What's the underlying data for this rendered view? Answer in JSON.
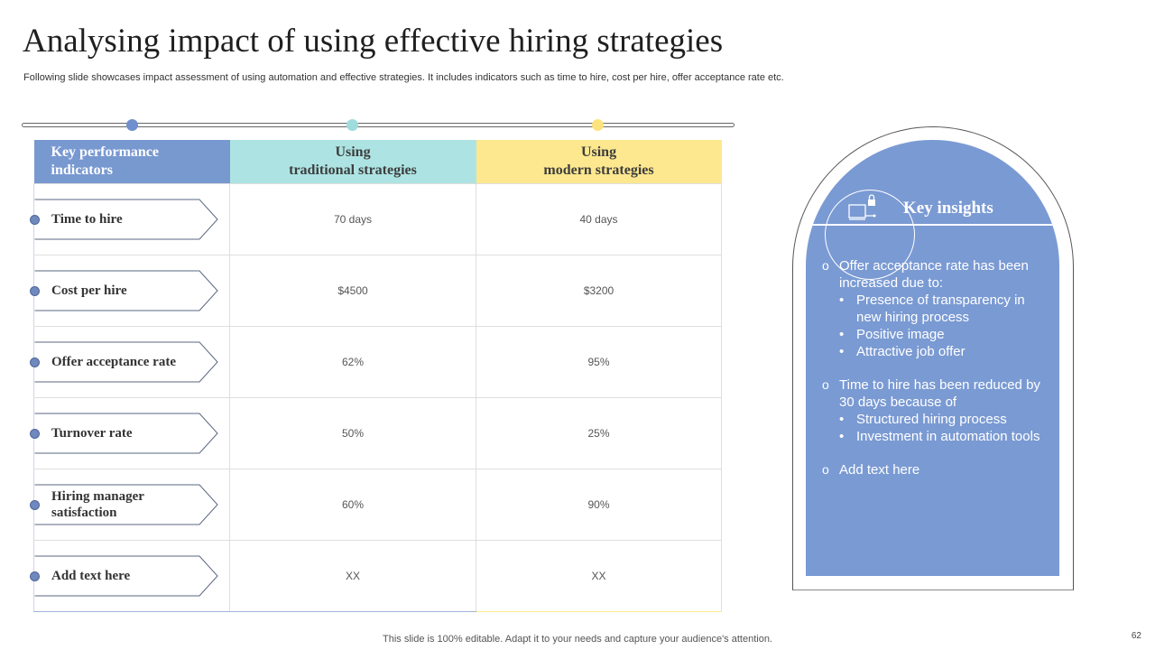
{
  "slide": {
    "title": "Analysing impact of using effective hiring strategies",
    "subtitle": "Following slide showcases impact assessment of using automation and effective strategies. It includes indicators such as time to hire, cost per hire, offer acceptance rate etc.",
    "footer": "This slide is 100% editable. Adapt it to your needs and capture your audience's attention.",
    "page_number": "62"
  },
  "colors": {
    "kpi_header": "#7898d0",
    "traditional_header": "#ade4e3",
    "modern_header": "#fde88f",
    "insights_panel": "#7a9ad3",
    "timeline_dots": [
      "#6f8fcf",
      "#9fdcdc",
      "#fde37e"
    ]
  },
  "table": {
    "headers": {
      "kpi": [
        "Key performance",
        "indicators"
      ],
      "traditional": [
        "Using",
        "traditional strategies"
      ],
      "modern": [
        "Using",
        "modern strategies"
      ]
    },
    "rows": [
      {
        "kpi": "Time to hire",
        "traditional": "70 days",
        "modern": "40 days"
      },
      {
        "kpi": "Cost per hire",
        "traditional": "$4500",
        "modern": "$3200"
      },
      {
        "kpi": "Offer acceptance rate",
        "traditional": "62%",
        "modern": "95%"
      },
      {
        "kpi": "Turnover rate",
        "traditional": "50%",
        "modern": "25%"
      },
      {
        "kpi": "Hiring manager satisfaction",
        "traditional": "60%",
        "modern": "90%"
      },
      {
        "kpi": "Add text here",
        "traditional": "XX",
        "modern": "XX"
      }
    ]
  },
  "insights": {
    "title": "Key insights",
    "icon": "pen-lock-icon",
    "bullet_marker": "o",
    "sub_marker": "•",
    "items": [
      {
        "text": "Offer acceptance rate has been increased due to:",
        "sub": [
          "Presence of transparency in new hiring process",
          "Positive image",
          "Attractive job offer"
        ]
      },
      {
        "text": "Time to hire has been reduced by 30 days because of",
        "sub": [
          "Structured hiring process",
          "Investment in automation tools"
        ]
      },
      {
        "text": "Add text here",
        "sub": []
      }
    ]
  }
}
